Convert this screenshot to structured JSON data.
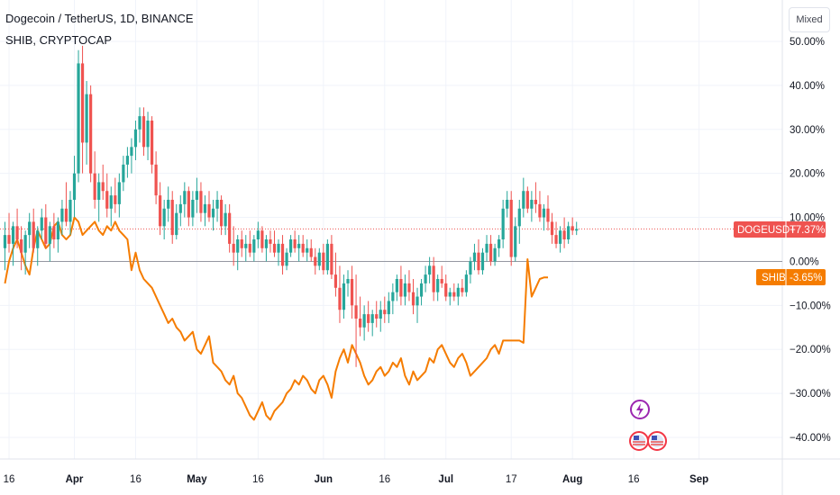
{
  "legend": {
    "main": "Dogecoin / TetherUS, 1D, BINANCE",
    "sub": "SHIB, CRYPTOCAP"
  },
  "scale_button": "Mixed",
  "price_labels": {
    "doge_name": "DOGEUSDT",
    "doge_value": "+7.37%",
    "shib_name": "SHIB",
    "shib_value": "-3.65%"
  },
  "colors": {
    "up": "#26a69a",
    "down": "#ef5350",
    "shib": "#f57c00",
    "zero_line": "#9598a1",
    "grid": "#f0f3fa",
    "doge_badge": "#ef5350",
    "shib_badge": "#f57c00",
    "event_purple": "#9c27b0",
    "event_red": "#f23645"
  },
  "event_icons": [
    "lightning-event-icon",
    "us-flag-event-icon",
    "us-flag-event-icon"
  ],
  "chart_data": {
    "type": "candlestick",
    "y_axis": {
      "unit": "percent",
      "ylim": [
        -44,
        50
      ],
      "ticks": [
        50,
        40,
        30,
        20,
        10,
        0,
        -10,
        -20,
        -30,
        -40
      ],
      "tick_labels": [
        "50.00%",
        "40.00%",
        "30.00%",
        "20.00%",
        "10.00%",
        "0.00%",
        "−10.00%",
        "−20.00%",
        "−30.00%",
        "−40.00%"
      ]
    },
    "x_axis": {
      "start": "2021-03-15",
      "end": "2021-09-08",
      "ticks": [
        {
          "date": "2021-03-16",
          "label": "16",
          "bold": false
        },
        {
          "date": "2021-04-01",
          "label": "Apr",
          "bold": true
        },
        {
          "date": "2021-04-16",
          "label": "16",
          "bold": false
        },
        {
          "date": "2021-05-01",
          "label": "May",
          "bold": true
        },
        {
          "date": "2021-05-16",
          "label": "16",
          "bold": false
        },
        {
          "date": "2021-06-01",
          "label": "Jun",
          "bold": true
        },
        {
          "date": "2021-06-16",
          "label": "16",
          "bold": false
        },
        {
          "date": "2021-07-01",
          "label": "Jul",
          "bold": true
        },
        {
          "date": "2021-07-17",
          "label": "17",
          "bold": false
        },
        {
          "date": "2021-08-01",
          "label": "Aug",
          "bold": true
        },
        {
          "date": "2021-08-16",
          "label": "16",
          "bold": false
        },
        {
          "date": "2021-09-01",
          "label": "Sep",
          "bold": true
        }
      ]
    },
    "grid": true,
    "zero_line": true,
    "last_price_line": 7.37,
    "series": [
      {
        "name": "DOGEUSDT",
        "type": "candlestick",
        "last": 7.37,
        "start_date": "2021-03-15",
        "ohlc": [
          [
            3,
            9,
            -2,
            6
          ],
          [
            6,
            11,
            2,
            4
          ],
          [
            4,
            9,
            -1,
            8
          ],
          [
            8,
            12,
            3,
            5
          ],
          [
            5,
            8,
            -2,
            2
          ],
          [
            2,
            7,
            -3,
            6
          ],
          [
            6,
            11,
            3,
            9
          ],
          [
            9,
            12,
            2,
            3
          ],
          [
            3,
            8,
            -1,
            7
          ],
          [
            7,
            12,
            5,
            10
          ],
          [
            10,
            13,
            3,
            4
          ],
          [
            4,
            9,
            0,
            8
          ],
          [
            8,
            11,
            3,
            5
          ],
          [
            5,
            10,
            2,
            9
          ],
          [
            9,
            14,
            6,
            12
          ],
          [
            12,
            18,
            8,
            9
          ],
          [
            9,
            16,
            6,
            14
          ],
          [
            14,
            24,
            10,
            20
          ],
          [
            20,
            48,
            18,
            45
          ],
          [
            45,
            49,
            20,
            27
          ],
          [
            27,
            41,
            22,
            38
          ],
          [
            38,
            40,
            18,
            20
          ],
          [
            20,
            25,
            12,
            14
          ],
          [
            14,
            20,
            9,
            18
          ],
          [
            18,
            22,
            14,
            16
          ],
          [
            16,
            20,
            10,
            12
          ],
          [
            12,
            17,
            8,
            15
          ],
          [
            15,
            19,
            11,
            13
          ],
          [
            13,
            20,
            10,
            18
          ],
          [
            18,
            24,
            16,
            22
          ],
          [
            22,
            26,
            19,
            24
          ],
          [
            24,
            28,
            20,
            26
          ],
          [
            26,
            32,
            23,
            30
          ],
          [
            30,
            35,
            27,
            33
          ],
          [
            33,
            35,
            24,
            26
          ],
          [
            26,
            34,
            23,
            32
          ],
          [
            32,
            33,
            20,
            22
          ],
          [
            22,
            25,
            13,
            15
          ],
          [
            15,
            18,
            6,
            8
          ],
          [
            8,
            14,
            5,
            12
          ],
          [
            12,
            17,
            9,
            14
          ],
          [
            14,
            16,
            4,
            6
          ],
          [
            6,
            13,
            5,
            11
          ],
          [
            11,
            15,
            8,
            13
          ],
          [
            13,
            18,
            10,
            16
          ],
          [
            16,
            17,
            8,
            10
          ],
          [
            10,
            16,
            8,
            14
          ],
          [
            14,
            19,
            11,
            16
          ],
          [
            16,
            18,
            9,
            11
          ],
          [
            11,
            15,
            8,
            13
          ],
          [
            13,
            16,
            9,
            10
          ],
          [
            10,
            14,
            7,
            12
          ],
          [
            12,
            16,
            9,
            14
          ],
          [
            14,
            15,
            6,
            8
          ],
          [
            8,
            13,
            6,
            11
          ],
          [
            11,
            13,
            2,
            4
          ],
          [
            4,
            8,
            -1,
            2
          ],
          [
            2,
            6,
            -2,
            5
          ],
          [
            5,
            7,
            1,
            3
          ],
          [
            3,
            6,
            0,
            4
          ],
          [
            4,
            7,
            1,
            2
          ],
          [
            2,
            6,
            0,
            5
          ],
          [
            5,
            9,
            3,
            7
          ],
          [
            7,
            8,
            2,
            3
          ],
          [
            3,
            6,
            0,
            5
          ],
          [
            5,
            7,
            2,
            4
          ],
          [
            4,
            7,
            1,
            2
          ],
          [
            2,
            5,
            -1,
            4
          ],
          [
            4,
            6,
            -3,
            -1
          ],
          [
            -1,
            3,
            -2,
            2
          ],
          [
            2,
            6,
            1,
            5
          ],
          [
            5,
            7,
            2,
            3
          ],
          [
            3,
            6,
            0,
            4
          ],
          [
            4,
            6,
            1,
            2
          ],
          [
            2,
            5,
            0,
            3
          ],
          [
            3,
            5,
            0,
            1
          ],
          [
            1,
            3,
            -3,
            -1
          ],
          [
            -1,
            3,
            -2,
            2
          ],
          [
            2,
            4,
            -3,
            -2
          ],
          [
            -2,
            5,
            -3,
            4
          ],
          [
            4,
            6,
            -4,
            -3
          ],
          [
            -3,
            2,
            -8,
            -6
          ],
          [
            -6,
            -1,
            -14,
            -11
          ],
          [
            -11,
            -3,
            -13,
            -5
          ],
          [
            -5,
            -2,
            -8,
            -4
          ],
          [
            -4,
            -1,
            -13,
            -10
          ],
          [
            -10,
            -3,
            -24,
            -13
          ],
          [
            -13,
            -8,
            -17,
            -15
          ],
          [
            -15,
            -10,
            -18,
            -12
          ],
          [
            -12,
            -9,
            -16,
            -14
          ],
          [
            -14,
            -11,
            -17,
            -12
          ],
          [
            -12,
            -9,
            -15,
            -13
          ],
          [
            -13,
            -9,
            -16,
            -11
          ],
          [
            -11,
            -8,
            -14,
            -12
          ],
          [
            -12,
            -7,
            -14,
            -9
          ],
          [
            -9,
            -5,
            -12,
            -7
          ],
          [
            -7,
            -3,
            -9,
            -4
          ],
          [
            -4,
            -1,
            -10,
            -8
          ],
          [
            -8,
            -3,
            -10,
            -5
          ],
          [
            -5,
            -2,
            -9,
            -7
          ],
          [
            -7,
            -4,
            -12,
            -10
          ],
          [
            -10,
            -6,
            -14,
            -8
          ],
          [
            -8,
            -4,
            -10,
            -5
          ],
          [
            -5,
            -1,
            -7,
            -3
          ],
          [
            -3,
            1,
            -5,
            -1
          ],
          [
            -1,
            1,
            -9,
            -7
          ],
          [
            -7,
            -3,
            -9,
            -4
          ],
          [
            -4,
            -1,
            -6,
            -5
          ],
          [
            -5,
            -3,
            -9,
            -8
          ],
          [
            -8,
            -6,
            -10,
            -7
          ],
          [
            -7,
            -5,
            -9,
            -8
          ],
          [
            -8,
            -5,
            -10,
            -6
          ],
          [
            -6,
            -4,
            -8,
            -7
          ],
          [
            -7,
            -2,
            -8,
            -3
          ],
          [
            -3,
            1,
            -5,
            0
          ],
          [
            0,
            4,
            -2,
            2
          ],
          [
            2,
            5,
            -3,
            -2
          ],
          [
            -2,
            3,
            -3,
            2
          ],
          [
            2,
            6,
            0,
            4
          ],
          [
            4,
            6,
            -1,
            0
          ],
          [
            0,
            4,
            -1,
            3
          ],
          [
            3,
            6,
            1,
            5
          ],
          [
            5,
            14,
            3,
            12
          ],
          [
            12,
            16,
            10,
            14
          ],
          [
            14,
            16,
            -1,
            1
          ],
          [
            1,
            10,
            0,
            8
          ],
          [
            8,
            14,
            4,
            12
          ],
          [
            12,
            19,
            10,
            16
          ],
          [
            16,
            17,
            11,
            12
          ],
          [
            12,
            16,
            9,
            14
          ],
          [
            14,
            18,
            11,
            13
          ],
          [
            13,
            16,
            9,
            10
          ],
          [
            10,
            13,
            7,
            12
          ],
          [
            12,
            15,
            7,
            9
          ],
          [
            9,
            11,
            4,
            6
          ],
          [
            6,
            9,
            3,
            4
          ],
          [
            4,
            8,
            2,
            7
          ],
          [
            7,
            10,
            3,
            5
          ],
          [
            5,
            9,
            4,
            8
          ],
          [
            8,
            10,
            6,
            7
          ],
          [
            7,
            9,
            6,
            7.37
          ]
        ]
      },
      {
        "name": "SHIB",
        "type": "line",
        "last": -3.65,
        "start_date": "2021-03-15",
        "values": [
          -5,
          0,
          3,
          5,
          2,
          -1,
          -3,
          3,
          7,
          5,
          3,
          4,
          8,
          9,
          6,
          5,
          6,
          10,
          9,
          6,
          7,
          8,
          9,
          7,
          6,
          8,
          7,
          9,
          7,
          6,
          5,
          -2,
          2,
          -2,
          -4,
          -5,
          -6,
          -8,
          -10,
          -12,
          -14,
          -13,
          -15,
          -16,
          -18,
          -17,
          -16,
          -20,
          -21,
          -19,
          -17,
          -23,
          -24,
          -25,
          -27,
          -28,
          -26,
          -30,
          -31,
          -33,
          -35,
          -36,
          -34,
          -32,
          -35,
          -36,
          -34,
          -33,
          -32,
          -30,
          -29,
          -27,
          -28,
          -26,
          -27,
          -29,
          -30,
          -27,
          -26,
          -28,
          -31,
          -25,
          -22,
          -20,
          -23,
          -19,
          -21,
          -23,
          -26,
          -28,
          -27,
          -25,
          -24,
          -26,
          -25,
          -23,
          -24,
          -22,
          -26,
          -28,
          -25,
          -27,
          -26,
          -25,
          -22,
          -23,
          -20,
          -19,
          -21,
          -23,
          -24,
          -22,
          -21,
          -23,
          -26,
          -25,
          -24,
          -23,
          -22,
          -20,
          -19,
          -21,
          -18,
          -18,
          -18,
          -18,
          -18,
          -18.5,
          0.5,
          -8,
          -6,
          -4,
          -3.65,
          -3.65
        ]
      }
    ]
  }
}
